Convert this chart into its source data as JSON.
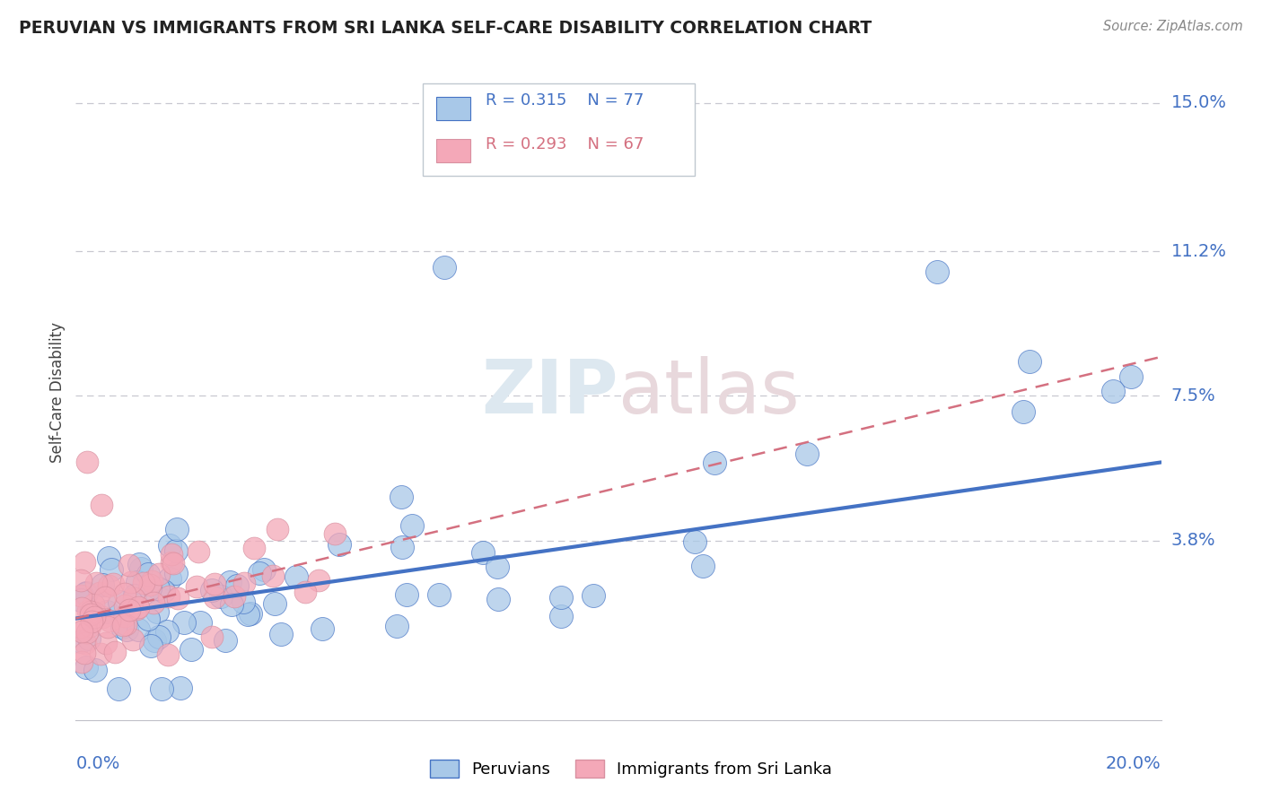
{
  "title": "PERUVIAN VS IMMIGRANTS FROM SRI LANKA SELF-CARE DISABILITY CORRELATION CHART",
  "source": "Source: ZipAtlas.com",
  "ylabel": "Self-Care Disability",
  "xlim": [
    0.0,
    0.2
  ],
  "ylim": [
    -0.008,
    0.16
  ],
  "r_peruvian": 0.315,
  "n_peruvian": 77,
  "r_srilanka": 0.293,
  "n_srilanka": 67,
  "color_peruvian": "#a8c8e8",
  "color_srilanka": "#f4a8b8",
  "color_peruvian_line": "#4472c4",
  "color_srilanka_line": "#d47080",
  "background": "#ffffff",
  "grid_color": "#c8c8d0",
  "ytick_vals": [
    0.038,
    0.075,
    0.112,
    0.15
  ],
  "ytick_labels": [
    "3.8%",
    "7.5%",
    "11.2%",
    "15.0%"
  ],
  "peruvian_line_x": [
    0.0,
    0.2
  ],
  "peruvian_line_y": [
    0.018,
    0.058
  ],
  "srilanka_line_x": [
    0.0,
    0.2
  ],
  "srilanka_line_y": [
    0.018,
    0.085
  ]
}
